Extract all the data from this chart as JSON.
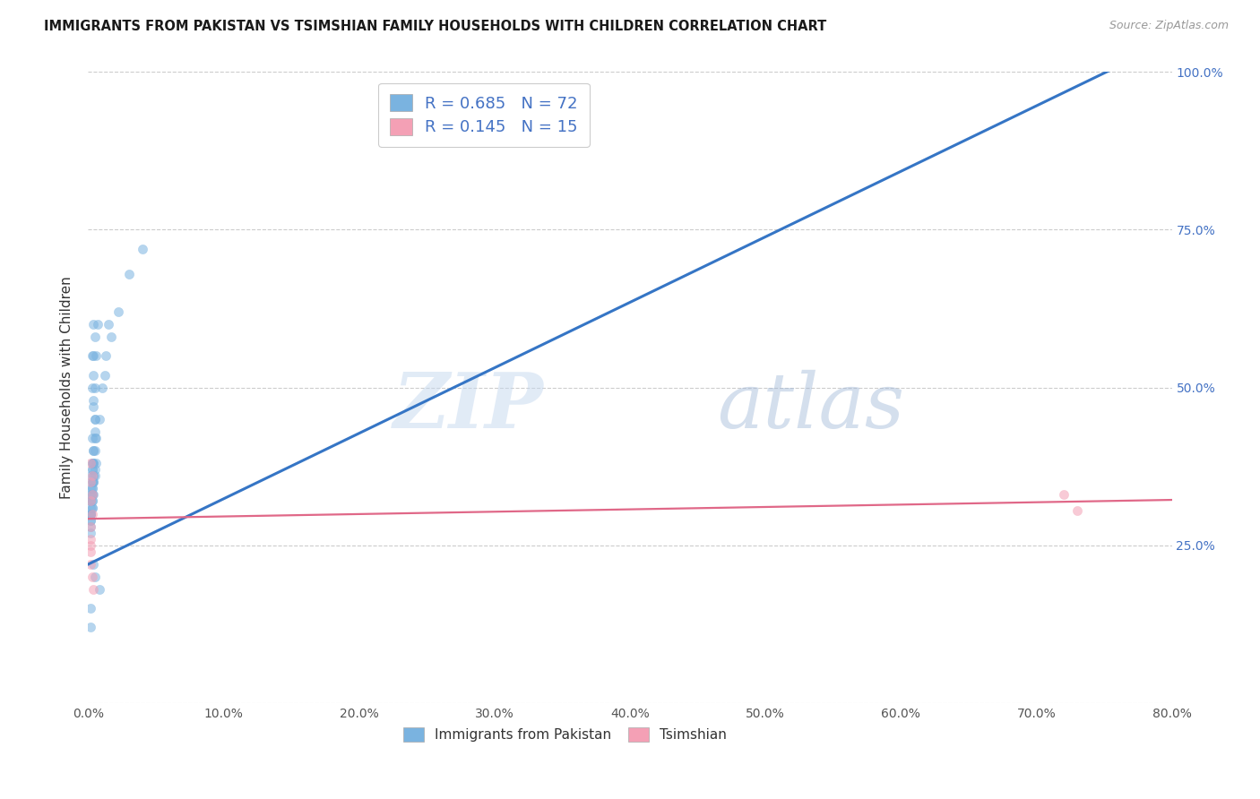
{
  "title": "IMMIGRANTS FROM PAKISTAN VS TSIMSHIAN FAMILY HOUSEHOLDS WITH CHILDREN CORRELATION CHART",
  "source": "Source: ZipAtlas.com",
  "ylabel": "Family Households with Children",
  "legend_entry1": "R = 0.685   N = 72",
  "legend_entry2": "R = 0.145   N = 15",
  "legend_label1": "Immigrants from Pakistan",
  "legend_label2": "Tsimshian",
  "watermark_zip": "ZIP",
  "watermark_atlas": "atlas",
  "xmin": 0.0,
  "xmax": 0.8,
  "ymin": 0.0,
  "ymax": 1.0,
  "yticks": [
    0.0,
    0.25,
    0.5,
    0.75,
    1.0
  ],
  "ytick_labels": [
    "",
    "25.0%",
    "50.0%",
    "75.0%",
    "100.0%"
  ],
  "background_color": "#ffffff",
  "grid_color": "#cccccc",
  "blue_color": "#7ab3e0",
  "pink_color": "#f4a0b5",
  "blue_line_color": "#3575c5",
  "pink_line_color": "#e06888",
  "scatter_alpha": 0.55,
  "scatter_size": 55,
  "blue_scatter_x": [
    0.002,
    0.003,
    0.004,
    0.003,
    0.005,
    0.004,
    0.003,
    0.004,
    0.002,
    0.003,
    0.003,
    0.005,
    0.004,
    0.006,
    0.005,
    0.003,
    0.004,
    0.002,
    0.003,
    0.005,
    0.004,
    0.003,
    0.002,
    0.004,
    0.005,
    0.007,
    0.004,
    0.003,
    0.003,
    0.004,
    0.002,
    0.002,
    0.005,
    0.004,
    0.003,
    0.004,
    0.003,
    0.005,
    0.004,
    0.003,
    0.002,
    0.003,
    0.002,
    0.002,
    0.003,
    0.005,
    0.004,
    0.002,
    0.002,
    0.002,
    0.006,
    0.005,
    0.003,
    0.002,
    0.002,
    0.003,
    0.004,
    0.006,
    0.008,
    0.01,
    0.013,
    0.015,
    0.012,
    0.017,
    0.022,
    0.03,
    0.04,
    0.008,
    0.005,
    0.004,
    0.002,
    0.002
  ],
  "blue_scatter_y": [
    0.33,
    0.38,
    0.4,
    0.42,
    0.45,
    0.48,
    0.5,
    0.52,
    0.3,
    0.35,
    0.55,
    0.58,
    0.6,
    0.55,
    0.5,
    0.32,
    0.36,
    0.28,
    0.37,
    0.43,
    0.47,
    0.33,
    0.3,
    0.4,
    0.45,
    0.6,
    0.55,
    0.31,
    0.34,
    0.38,
    0.32,
    0.29,
    0.42,
    0.36,
    0.31,
    0.33,
    0.37,
    0.4,
    0.35,
    0.32,
    0.3,
    0.38,
    0.36,
    0.34,
    0.33,
    0.37,
    0.35,
    0.31,
    0.3,
    0.32,
    0.38,
    0.36,
    0.34,
    0.29,
    0.27,
    0.35,
    0.38,
    0.42,
    0.45,
    0.5,
    0.55,
    0.6,
    0.52,
    0.58,
    0.62,
    0.68,
    0.72,
    0.18,
    0.2,
    0.22,
    0.15,
    0.12
  ],
  "pink_scatter_x": [
    0.002,
    0.002,
    0.003,
    0.004,
    0.002,
    0.003,
    0.002,
    0.002,
    0.003,
    0.002,
    0.002,
    0.003,
    0.002,
    0.72,
    0.73
  ],
  "pink_scatter_y": [
    0.25,
    0.22,
    0.2,
    0.18,
    0.32,
    0.3,
    0.28,
    0.35,
    0.33,
    0.26,
    0.38,
    0.36,
    0.24,
    0.33,
    0.305
  ],
  "blue_line_x": [
    0.0,
    0.8
  ],
  "blue_line_y": [
    0.22,
    1.05
  ],
  "pink_line_x": [
    0.0,
    0.8
  ],
  "pink_line_y": [
    0.292,
    0.322
  ]
}
